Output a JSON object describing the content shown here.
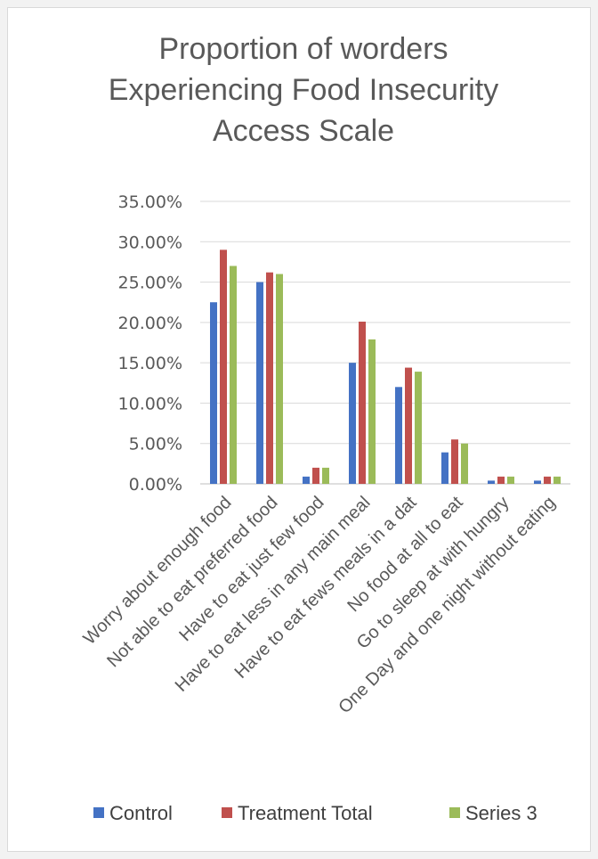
{
  "chart_data": {
    "type": "bar",
    "title_lines": [
      "Proportion of worders",
      "Experiencing Food Insecurity",
      "Access Scale"
    ],
    "categories": [
      "Worry about enough food",
      "Not able to eat preferred food",
      "Have to eat just few food",
      "Have to eat less in any main meal",
      "Have to eat fews meals in a dat",
      "No food at all to eat",
      "Go to sleep at with hungry",
      "One Day and one night without eating"
    ],
    "series": [
      {
        "name": "Control",
        "color": "#4472c4",
        "values": [
          0.225,
          0.25,
          0.009,
          0.15,
          0.12,
          0.039,
          0.004,
          0.004
        ]
      },
      {
        "name": "Treatment Total",
        "color": "#c0504d",
        "values": [
          0.29,
          0.262,
          0.02,
          0.201,
          0.144,
          0.055,
          0.009,
          0.009
        ]
      },
      {
        "name": "Series 3",
        "color": "#9bbb59",
        "values": [
          0.27,
          0.26,
          0.02,
          0.179,
          0.139,
          0.05,
          0.009,
          0.009
        ]
      }
    ],
    "ylim": [
      0,
      0.35
    ],
    "yticks": [
      "0.00%",
      "5.00%",
      "10.00%",
      "15.00%",
      "20.00%",
      "25.00%",
      "30.00%",
      "35.00%"
    ],
    "grid": true,
    "legend_position": "bottom"
  }
}
